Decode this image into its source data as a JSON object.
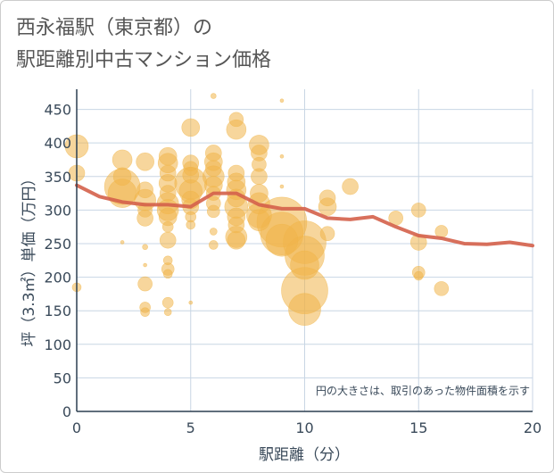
{
  "title_line1": "西永福駅（東京都）の",
  "title_line2": "駅距離別中古マンション価格",
  "chart_data": {
    "type": "scatter",
    "title": "西永福駅（東京都）の駅距離別中古マンション価格",
    "xlabel": "駅距離（分）",
    "ylabel": "坪（3.3㎡）単価（万円）",
    "xlim": [
      0,
      20
    ],
    "ylim": [
      0,
      480
    ],
    "x_ticks": [
      0,
      5,
      10,
      15,
      20
    ],
    "y_ticks": [
      0,
      50,
      100,
      150,
      200,
      250,
      300,
      350,
      400,
      450
    ],
    "grid": true,
    "note": "円の大きさは、取引のあった物件面積を示す",
    "colors": {
      "bubble": "#f0b54a",
      "line": "#d4614a",
      "grid": "#c8d6e4"
    },
    "bubbles": [
      {
        "x": 0,
        "y": 395,
        "s": 13
      },
      {
        "x": 0,
        "y": 355,
        "s": 9
      },
      {
        "x": 0,
        "y": 185,
        "s": 5
      },
      {
        "x": 2,
        "y": 375,
        "s": 11
      },
      {
        "x": 2,
        "y": 350,
        "s": 10
      },
      {
        "x": 2,
        "y": 335,
        "s": 20
      },
      {
        "x": 2,
        "y": 325,
        "s": 16
      },
      {
        "x": 2,
        "y": 252,
        "s": 2
      },
      {
        "x": 3,
        "y": 372,
        "s": 10
      },
      {
        "x": 3,
        "y": 330,
        "s": 9
      },
      {
        "x": 3,
        "y": 315,
        "s": 12
      },
      {
        "x": 3,
        "y": 300,
        "s": 8
      },
      {
        "x": 3,
        "y": 288,
        "s": 9
      },
      {
        "x": 3,
        "y": 245,
        "s": 3
      },
      {
        "x": 3,
        "y": 218,
        "s": 2
      },
      {
        "x": 3,
        "y": 190,
        "s": 8
      },
      {
        "x": 3,
        "y": 155,
        "s": 6
      },
      {
        "x": 3,
        "y": 148,
        "s": 5
      },
      {
        "x": 4,
        "y": 380,
        "s": 10
      },
      {
        "x": 4,
        "y": 370,
        "s": 11
      },
      {
        "x": 4,
        "y": 355,
        "s": 9
      },
      {
        "x": 4,
        "y": 340,
        "s": 10
      },
      {
        "x": 4,
        "y": 325,
        "s": 9
      },
      {
        "x": 4,
        "y": 310,
        "s": 12
      },
      {
        "x": 4,
        "y": 300,
        "s": 12
      },
      {
        "x": 4,
        "y": 290,
        "s": 10
      },
      {
        "x": 4,
        "y": 275,
        "s": 6
      },
      {
        "x": 4,
        "y": 255,
        "s": 9
      },
      {
        "x": 4,
        "y": 225,
        "s": 5
      },
      {
        "x": 4,
        "y": 212,
        "s": 7
      },
      {
        "x": 4,
        "y": 205,
        "s": 5
      },
      {
        "x": 4,
        "y": 162,
        "s": 6
      },
      {
        "x": 4,
        "y": 148,
        "s": 4
      },
      {
        "x": 5,
        "y": 423,
        "s": 10
      },
      {
        "x": 5,
        "y": 370,
        "s": 9
      },
      {
        "x": 5,
        "y": 362,
        "s": 8
      },
      {
        "x": 5,
        "y": 352,
        "s": 9
      },
      {
        "x": 5,
        "y": 340,
        "s": 18
      },
      {
        "x": 5,
        "y": 328,
        "s": 13
      },
      {
        "x": 5,
        "y": 315,
        "s": 10
      },
      {
        "x": 5,
        "y": 305,
        "s": 9
      },
      {
        "x": 5,
        "y": 290,
        "s": 6
      },
      {
        "x": 5,
        "y": 278,
        "s": 5
      },
      {
        "x": 5,
        "y": 162,
        "s": 2
      },
      {
        "x": 6,
        "y": 470,
        "s": 3
      },
      {
        "x": 6,
        "y": 385,
        "s": 9
      },
      {
        "x": 6,
        "y": 372,
        "s": 10
      },
      {
        "x": 6,
        "y": 362,
        "s": 9
      },
      {
        "x": 6,
        "y": 350,
        "s": 12
      },
      {
        "x": 6,
        "y": 337,
        "s": 10
      },
      {
        "x": 6,
        "y": 325,
        "s": 8
      },
      {
        "x": 6,
        "y": 310,
        "s": 8
      },
      {
        "x": 6,
        "y": 298,
        "s": 7
      },
      {
        "x": 6,
        "y": 268,
        "s": 4
      },
      {
        "x": 6,
        "y": 248,
        "s": 5
      },
      {
        "x": 7,
        "y": 435,
        "s": 8
      },
      {
        "x": 7,
        "y": 420,
        "s": 11
      },
      {
        "x": 7,
        "y": 355,
        "s": 9
      },
      {
        "x": 7,
        "y": 342,
        "s": 10
      },
      {
        "x": 7,
        "y": 330,
        "s": 11
      },
      {
        "x": 7,
        "y": 318,
        "s": 10
      },
      {
        "x": 7,
        "y": 305,
        "s": 13
      },
      {
        "x": 7,
        "y": 290,
        "s": 10
      },
      {
        "x": 7,
        "y": 278,
        "s": 9
      },
      {
        "x": 7,
        "y": 260,
        "s": 12
      },
      {
        "x": 7,
        "y": 255,
        "s": 10
      },
      {
        "x": 8,
        "y": 397,
        "s": 11
      },
      {
        "x": 8,
        "y": 385,
        "s": 9
      },
      {
        "x": 8,
        "y": 368,
        "s": 8
      },
      {
        "x": 8,
        "y": 350,
        "s": 9
      },
      {
        "x": 8,
        "y": 325,
        "s": 10
      },
      {
        "x": 8,
        "y": 310,
        "s": 12
      },
      {
        "x": 8,
        "y": 292,
        "s": 14
      },
      {
        "x": 8,
        "y": 285,
        "s": 12
      },
      {
        "x": 9,
        "y": 463,
        "s": 2
      },
      {
        "x": 9,
        "y": 380,
        "s": 2
      },
      {
        "x": 9,
        "y": 335,
        "s": 2
      },
      {
        "x": 9,
        "y": 282,
        "s": 28
      },
      {
        "x": 9,
        "y": 265,
        "s": 24
      },
      {
        "x": 9,
        "y": 255,
        "s": 18
      },
      {
        "x": 10,
        "y": 252,
        "s": 24
      },
      {
        "x": 10,
        "y": 232,
        "s": 22
      },
      {
        "x": 10,
        "y": 218,
        "s": 16
      },
      {
        "x": 10,
        "y": 180,
        "s": 26
      },
      {
        "x": 10,
        "y": 152,
        "s": 18
      },
      {
        "x": 11,
        "y": 318,
        "s": 9
      },
      {
        "x": 11,
        "y": 305,
        "s": 10
      },
      {
        "x": 11,
        "y": 265,
        "s": 8
      },
      {
        "x": 12,
        "y": 335,
        "s": 9
      },
      {
        "x": 14,
        "y": 288,
        "s": 8
      },
      {
        "x": 15,
        "y": 300,
        "s": 8
      },
      {
        "x": 15,
        "y": 252,
        "s": 9
      },
      {
        "x": 15,
        "y": 207,
        "s": 7
      },
      {
        "x": 15,
        "y": 202,
        "s": 5
      },
      {
        "x": 16,
        "y": 268,
        "s": 7
      },
      {
        "x": 16,
        "y": 183,
        "s": 8
      }
    ],
    "series": [
      {
        "values": [
          {
            "x": 0,
            "y": 337
          },
          {
            "x": 1,
            "y": 320
          },
          {
            "x": 2,
            "y": 312
          },
          {
            "x": 3,
            "y": 308
          },
          {
            "x": 4,
            "y": 308
          },
          {
            "x": 5,
            "y": 305
          },
          {
            "x": 6,
            "y": 325
          },
          {
            "x": 7,
            "y": 325
          },
          {
            "x": 8,
            "y": 308
          },
          {
            "x": 9,
            "y": 302
          },
          {
            "x": 10,
            "y": 302
          },
          {
            "x": 11,
            "y": 288
          },
          {
            "x": 12,
            "y": 286
          },
          {
            "x": 13,
            "y": 290
          },
          {
            "x": 14,
            "y": 275
          },
          {
            "x": 15,
            "y": 262
          },
          {
            "x": 16,
            "y": 258
          },
          {
            "x": 17,
            "y": 250
          },
          {
            "x": 18,
            "y": 249
          },
          {
            "x": 19,
            "y": 252
          },
          {
            "x": 20,
            "y": 247
          }
        ]
      }
    ]
  }
}
